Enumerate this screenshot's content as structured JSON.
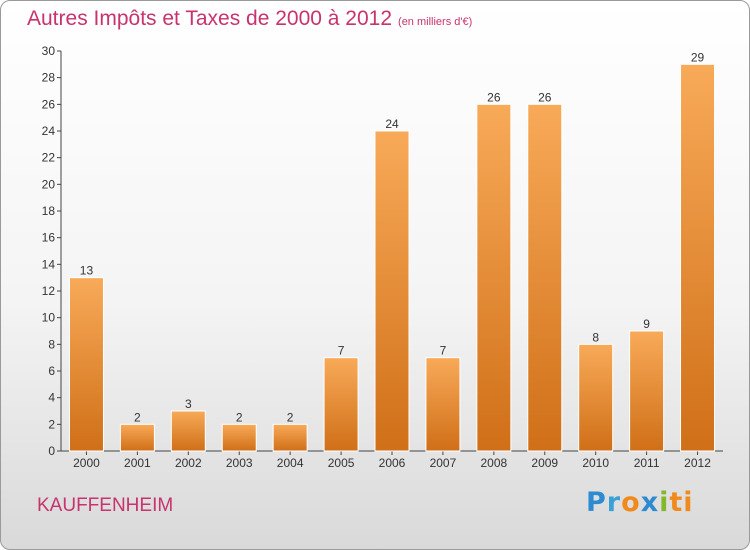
{
  "title": {
    "main": "Autres Impôts et Taxes de 2000 à 2012",
    "unit": "(en milliers d'€)"
  },
  "commune": "KAUFFENHEIM",
  "logo": {
    "text": "Proxiti",
    "letters": [
      "P",
      "r",
      "o",
      "x",
      "i",
      "ti"
    ]
  },
  "chart_data": {
    "type": "bar",
    "title": "Autres Impôts et Taxes de 2000 à 2012",
    "subtitle": "(en milliers d'€)",
    "categories": [
      "2000",
      "2001",
      "2002",
      "2003",
      "2004",
      "2005",
      "2006",
      "2007",
      "2008",
      "2009",
      "2010",
      "2011",
      "2012"
    ],
    "values": [
      13,
      2,
      3,
      2,
      2,
      7,
      24,
      7,
      26,
      26,
      8,
      9,
      29
    ],
    "data_labels": [
      "13",
      "2",
      "3",
      "2",
      "2",
      "7",
      "24",
      "7",
      "26",
      "26",
      "8",
      "9",
      "29"
    ],
    "ylim": [
      0,
      30
    ],
    "yticks": [
      0,
      2,
      4,
      6,
      8,
      10,
      12,
      14,
      16,
      18,
      20,
      22,
      24,
      26,
      28,
      30
    ],
    "grid": false,
    "bar_color": "#f0902e",
    "bar_color_light": "#f8aa58",
    "bar_color_dark": "#d06f18"
  }
}
